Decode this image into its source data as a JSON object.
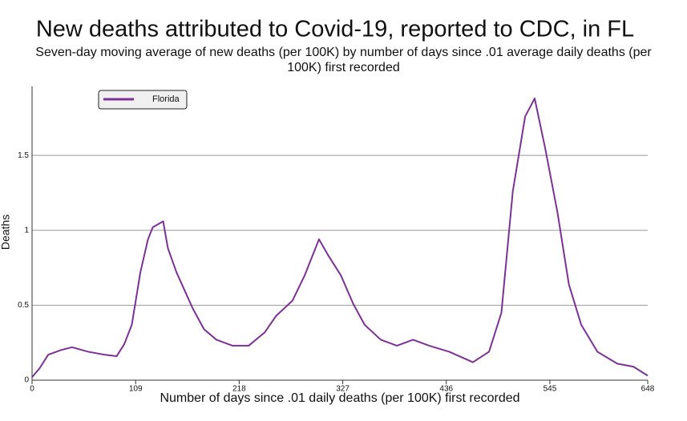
{
  "chart_data": {
    "type": "line",
    "title": "New deaths attributed to Covid-19, reported to CDC, in FL",
    "subtitle": "Seven-day moving average of new deaths (per 100K) by number of days since .01 average daily deaths (per 100K) first recorded",
    "x_label": "Number of days since .01 daily deaths (per 100K) first recorded",
    "y_label": "Deaths",
    "x": [
      0,
      8,
      17,
      30,
      42,
      59,
      76,
      89,
      97,
      105,
      114,
      122,
      127,
      138,
      143,
      152,
      169,
      181,
      194,
      211,
      228,
      245,
      257,
      274,
      287,
      302,
      312,
      325,
      338,
      350,
      367,
      384,
      401,
      418,
      439,
      464,
      481,
      494,
      506,
      519,
      529,
      540,
      553,
      565,
      578,
      595,
      616,
      633,
      648
    ],
    "series": [
      {
        "name": "Florida",
        "color": "#7b3294",
        "values": [
          0.02,
          0.08,
          0.17,
          0.2,
          0.22,
          0.19,
          0.17,
          0.16,
          0.24,
          0.37,
          0.72,
          0.94,
          1.02,
          1.06,
          0.88,
          0.72,
          0.48,
          0.34,
          0.27,
          0.23,
          0.23,
          0.32,
          0.43,
          0.53,
          0.7,
          0.94,
          0.83,
          0.7,
          0.51,
          0.37,
          0.27,
          0.23,
          0.27,
          0.23,
          0.19,
          0.12,
          0.19,
          0.45,
          1.26,
          1.76,
          1.88,
          1.55,
          1.12,
          0.64,
          0.37,
          0.19,
          0.11,
          0.09,
          0.03
        ]
      }
    ],
    "xlim": [
      0,
      648
    ],
    "xticks": [
      0,
      109,
      218,
      327,
      436,
      545,
      648
    ],
    "ylim": [
      0,
      1.96
    ],
    "yticks": [
      0,
      0.5,
      1,
      1.5
    ],
    "grid": true,
    "legend": "upper left"
  }
}
